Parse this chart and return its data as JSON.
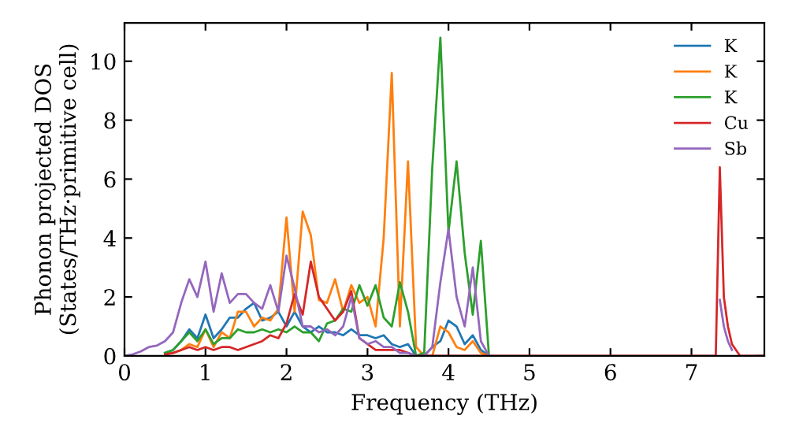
{
  "chart_data": {
    "type": "line",
    "xlabel": "Frequency (THz)",
    "ylabel": "Phonon projected DOS\n(States/THz·primitive cell)",
    "x": [
      0,
      0.1,
      0.2,
      0.3,
      0.4,
      0.5,
      0.6,
      0.7,
      0.8,
      0.9,
      1.0,
      1.1,
      1.2,
      1.3,
      1.4,
      1.5,
      1.6,
      1.7,
      1.8,
      1.9,
      2.0,
      2.1,
      2.2,
      2.3,
      2.4,
      2.5,
      2.6,
      2.7,
      2.8,
      2.9,
      3.0,
      3.1,
      3.2,
      3.3,
      3.4,
      3.5,
      3.6,
      3.7,
      3.8,
      3.9,
      4.0,
      4.1,
      4.2,
      4.3,
      4.4,
      4.5,
      7.3,
      7.35,
      7.4,
      7.45,
      7.5,
      7.6,
      7.9
    ],
    "series": [
      {
        "name": "K",
        "color": "#1f77b4",
        "values": [
          null,
          null,
          null,
          null,
          null,
          0.1,
          0.2,
          0.5,
          0.9,
          0.6,
          1.4,
          0.6,
          0.9,
          1.3,
          1.3,
          1.6,
          1.8,
          1.2,
          1.3,
          1.5,
          1.0,
          1.5,
          1.0,
          0.8,
          1.0,
          0.8,
          0.8,
          0.7,
          0.9,
          0.7,
          0.7,
          0.6,
          0.7,
          0.4,
          0.3,
          0.4,
          0,
          0,
          0.3,
          0.5,
          1.2,
          1.0,
          0.4,
          0.7,
          0.2,
          0,
          null,
          null,
          null,
          null,
          null,
          null,
          null
        ]
      },
      {
        "name": "K",
        "color": "#ff7f0e",
        "values": [
          null,
          null,
          null,
          null,
          null,
          0.05,
          0.1,
          0.2,
          0.4,
          0.3,
          0.9,
          0.3,
          0.8,
          0.6,
          1.5,
          1.5,
          1.0,
          1.3,
          1.2,
          1.6,
          4.7,
          1.5,
          4.9,
          4.1,
          1.9,
          1.8,
          2.6,
          1.5,
          2.4,
          1.8,
          2.0,
          1.0,
          4.0,
          9.6,
          1.0,
          6.6,
          0.3,
          0,
          0,
          1.0,
          0.8,
          0.3,
          0.2,
          0.5,
          0.1,
          0,
          null,
          null,
          null,
          null,
          null,
          null,
          null
        ]
      },
      {
        "name": "K",
        "color": "#2ca02c",
        "values": [
          null,
          null,
          null,
          null,
          null,
          0.1,
          0.2,
          0.5,
          0.8,
          0.5,
          0.9,
          0.4,
          0.6,
          0.6,
          0.9,
          0.8,
          0.8,
          0.9,
          0.8,
          0.9,
          0.8,
          1.0,
          0.8,
          0.8,
          0.5,
          1.1,
          1.2,
          1.6,
          1.5,
          2.4,
          1.7,
          2.4,
          1.3,
          1.0,
          2.5,
          1.5,
          0,
          0.1,
          6.4,
          10.8,
          4.2,
          6.6,
          3.5,
          1.4,
          3.9,
          0,
          null,
          null,
          null,
          null,
          null,
          null,
          null
        ]
      },
      {
        "name": "Cu",
        "color": "#d62728",
        "values": [
          null,
          null,
          null,
          null,
          null,
          0.05,
          0.1,
          0.2,
          0.3,
          0.2,
          0.3,
          0.2,
          0.3,
          0.3,
          0.2,
          0.3,
          0.4,
          0.5,
          0.7,
          0.6,
          1.1,
          2.1,
          1.4,
          3.2,
          2.0,
          1.6,
          1.2,
          1.5,
          2.2,
          0.6,
          0.4,
          0.2,
          0.2,
          0.2,
          0.2,
          0.1,
          0,
          0,
          0,
          0,
          0,
          0,
          0,
          0,
          0,
          0,
          0,
          6.4,
          2.0,
          1.0,
          0.4,
          0,
          0
        ]
      },
      {
        "name": "Sb",
        "color": "#9467bd",
        "values": [
          0,
          0.05,
          0.15,
          0.3,
          0.35,
          0.5,
          0.8,
          1.8,
          2.6,
          2.0,
          3.2,
          1.5,
          2.8,
          1.8,
          2.1,
          2.1,
          1.8,
          1.6,
          2.4,
          1.5,
          3.4,
          2.3,
          1.0,
          1.0,
          0.8,
          0.9,
          0.7,
          1.0,
          2.0,
          0.6,
          0.4,
          0.5,
          0.3,
          0.3,
          0.1,
          0.1,
          0,
          0,
          0.3,
          2.5,
          4.3,
          2.0,
          1.0,
          3.0,
          0.5,
          0,
          null,
          1.9,
          1.0,
          0.5,
          0.2,
          null,
          null
        ]
      }
    ],
    "xlim": [
      0,
      7.9
    ],
    "ylim": [
      0,
      11.3
    ],
    "xticks": [
      0,
      1,
      2,
      3,
      4,
      5,
      6,
      7
    ],
    "yticks": [
      0,
      2,
      4,
      6,
      8,
      10
    ],
    "legend": "top right",
    "grid": false,
    "line_style": "solid",
    "marker": "none"
  }
}
